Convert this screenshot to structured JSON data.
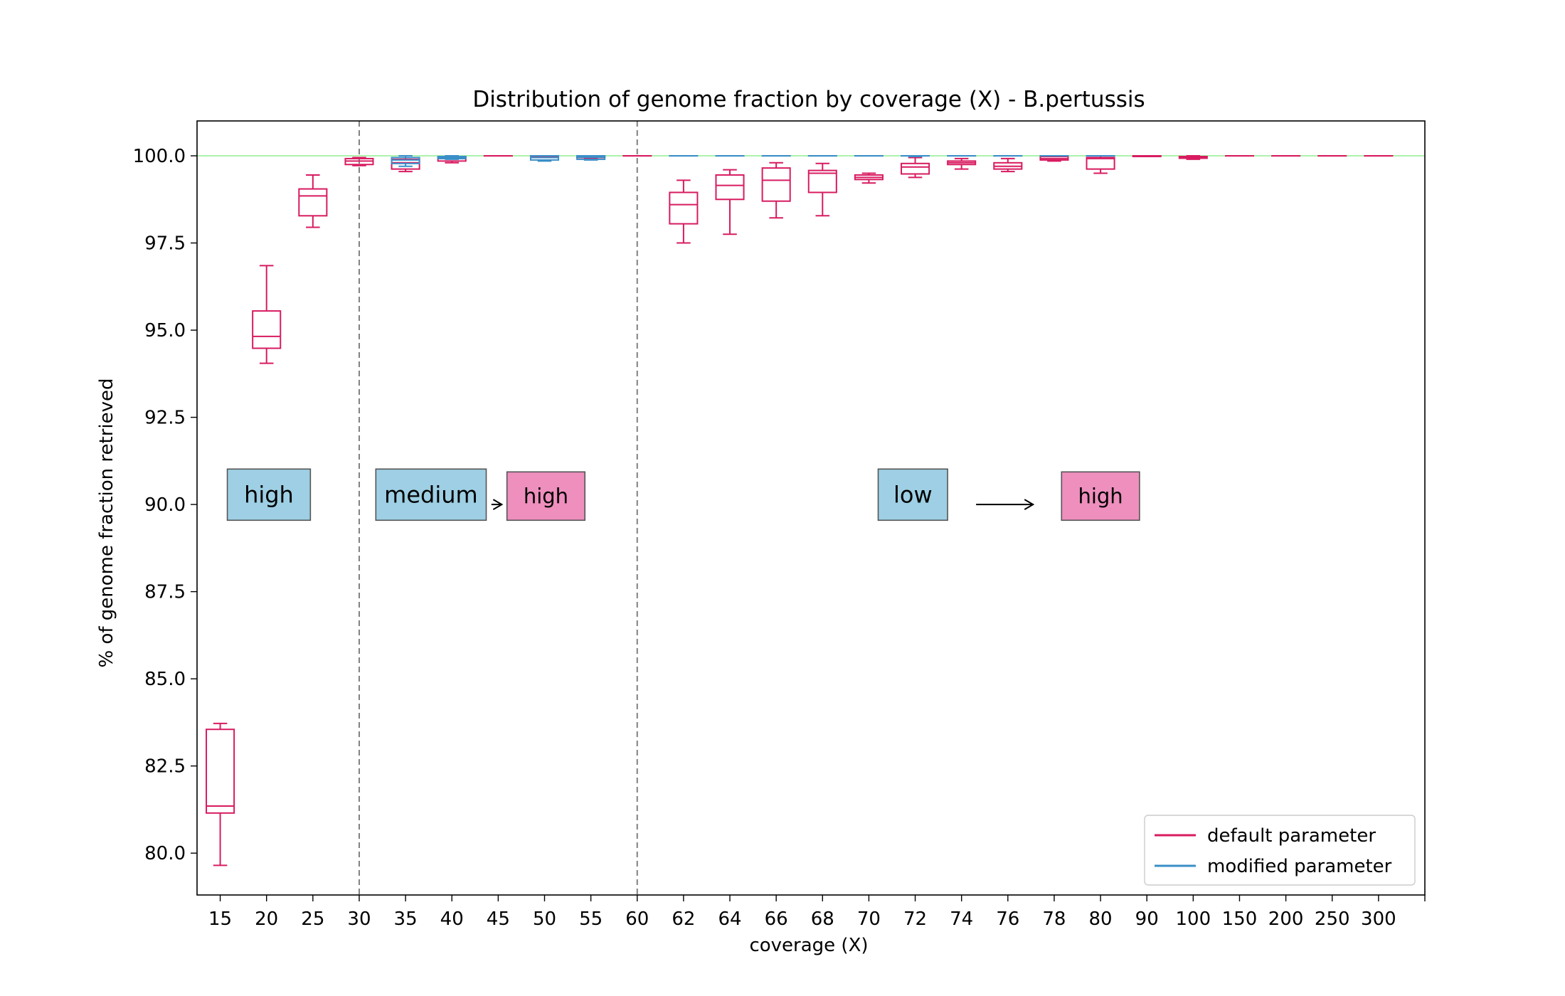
{
  "chart_data": {
    "type": "box",
    "title": "Distribution of genome fraction by coverage (X) - B.pertussis",
    "xlabel": "coverage (X)",
    "ylabel": "% of genome fraction retrieved",
    "ylim": [
      78.8,
      101.0
    ],
    "yticks": [
      "80.0",
      "82.5",
      "85.0",
      "87.5",
      "90.0",
      "92.5",
      "95.0",
      "97.5",
      "100.0"
    ],
    "categories": [
      "15",
      "20",
      "25",
      "30",
      "35",
      "40",
      "45",
      "50",
      "55",
      "60",
      "62",
      "64",
      "66",
      "68",
      "70",
      "72",
      "74",
      "76",
      "78",
      "80",
      "90",
      "100",
      "150",
      "200",
      "250",
      "300"
    ],
    "reference_line": 100.0,
    "reference_color": "#90ee90",
    "region_dividers_after": [
      "30",
      "60"
    ],
    "series": [
      {
        "name": "default parameter",
        "color": "#d81b60",
        "boxes": [
          {
            "cat": "15",
            "wl": 79.65,
            "q1": 81.15,
            "med": 81.35,
            "q3": 83.55,
            "wh": 83.72
          },
          {
            "cat": "20",
            "wl": 94.05,
            "q1": 94.48,
            "med": 94.82,
            "q3": 95.55,
            "wh": 96.85
          },
          {
            "cat": "25",
            "wl": 97.95,
            "q1": 98.28,
            "med": 98.85,
            "q3": 99.05,
            "wh": 99.45
          },
          {
            "cat": "30",
            "wl": 99.72,
            "q1": 99.75,
            "med": 99.85,
            "q3": 99.92,
            "wh": 99.95
          },
          {
            "cat": "35",
            "wl": 99.55,
            "q1": 99.62,
            "med": 99.8,
            "q3": 99.9,
            "wh": 99.95
          },
          {
            "cat": "40",
            "wl": 99.8,
            "q1": 99.85,
            "med": 99.92,
            "q3": 99.97,
            "wh": 100.0
          },
          {
            "cat": "45",
            "wl": 100.0,
            "q1": 100.0,
            "med": 100.0,
            "q3": 100.0,
            "wh": 100.0
          },
          {
            "cat": "50",
            "wl": 99.98,
            "q1": 99.98,
            "med": 100.0,
            "q3": 100.0,
            "wh": 100.0
          },
          {
            "cat": "55",
            "wl": 99.92,
            "q1": 99.95,
            "med": 99.98,
            "q3": 100.0,
            "wh": 100.0
          },
          {
            "cat": "60",
            "wl": 100.0,
            "q1": 100.0,
            "med": 100.0,
            "q3": 100.0,
            "wh": 100.0
          },
          {
            "cat": "62",
            "wl": 97.5,
            "q1": 98.05,
            "med": 98.6,
            "q3": 98.95,
            "wh": 99.3
          },
          {
            "cat": "64",
            "wl": 97.75,
            "q1": 98.75,
            "med": 99.15,
            "q3": 99.45,
            "wh": 99.6
          },
          {
            "cat": "66",
            "wl": 98.22,
            "q1": 98.7,
            "med": 99.3,
            "q3": 99.65,
            "wh": 99.8
          },
          {
            "cat": "68",
            "wl": 98.28,
            "q1": 98.95,
            "med": 99.5,
            "q3": 99.58,
            "wh": 99.78
          },
          {
            "cat": "70",
            "wl": 99.22,
            "q1": 99.32,
            "med": 99.38,
            "q3": 99.45,
            "wh": 99.5
          },
          {
            "cat": "72",
            "wl": 99.38,
            "q1": 99.48,
            "med": 99.68,
            "q3": 99.78,
            "wh": 99.95
          },
          {
            "cat": "74",
            "wl": 99.62,
            "q1": 99.75,
            "med": 99.8,
            "q3": 99.85,
            "wh": 99.92
          },
          {
            "cat": "76",
            "wl": 99.55,
            "q1": 99.62,
            "med": 99.7,
            "q3": 99.8,
            "wh": 99.92
          },
          {
            "cat": "78",
            "wl": 99.85,
            "q1": 99.88,
            "med": 99.92,
            "q3": 99.98,
            "wh": 100.0
          },
          {
            "cat": "80",
            "wl": 99.5,
            "q1": 99.62,
            "med": 99.92,
            "q3": 99.95,
            "wh": 100.0
          },
          {
            "cat": "90",
            "wl": 99.98,
            "q1": 99.98,
            "med": 100.0,
            "q3": 100.0,
            "wh": 100.0
          },
          {
            "cat": "100",
            "wl": 99.9,
            "q1": 99.93,
            "med": 99.95,
            "q3": 99.98,
            "wh": 100.0
          },
          {
            "cat": "150",
            "wl": 100.0,
            "q1": 100.0,
            "med": 100.0,
            "q3": 100.0,
            "wh": 100.0
          },
          {
            "cat": "200",
            "wl": 100.0,
            "q1": 100.0,
            "med": 100.0,
            "q3": 100.0,
            "wh": 100.0
          },
          {
            "cat": "250",
            "wl": 100.0,
            "q1": 100.0,
            "med": 100.0,
            "q3": 100.0,
            "wh": 100.0
          },
          {
            "cat": "300",
            "wl": 100.0,
            "q1": 100.0,
            "med": 100.0,
            "q3": 100.0,
            "wh": 100.0
          }
        ]
      },
      {
        "name": "modified parameter",
        "color": "#3a8fc8",
        "boxes": [
          {
            "cat": "35",
            "wl": 99.7,
            "q1": 99.78,
            "med": 99.88,
            "q3": 99.95,
            "wh": 100.0
          },
          {
            "cat": "40",
            "wl": 99.9,
            "q1": 99.92,
            "med": 99.96,
            "q3": 99.98,
            "wh": 100.0
          },
          {
            "cat": "50",
            "wl": 99.85,
            "q1": 99.88,
            "med": 99.95,
            "q3": 100.0,
            "wh": 100.0
          },
          {
            "cat": "55",
            "wl": 99.88,
            "q1": 99.9,
            "med": 99.96,
            "q3": 100.0,
            "wh": 100.0
          },
          {
            "cat": "62",
            "wl": 100.0,
            "q1": 100.0,
            "med": 100.0,
            "q3": 100.0,
            "wh": 100.0
          },
          {
            "cat": "64",
            "wl": 100.0,
            "q1": 100.0,
            "med": 100.0,
            "q3": 100.0,
            "wh": 100.0
          },
          {
            "cat": "66",
            "wl": 100.0,
            "q1": 100.0,
            "med": 100.0,
            "q3": 100.0,
            "wh": 100.0
          },
          {
            "cat": "68",
            "wl": 100.0,
            "q1": 100.0,
            "med": 100.0,
            "q3": 100.0,
            "wh": 100.0
          },
          {
            "cat": "70",
            "wl": 100.0,
            "q1": 100.0,
            "med": 100.0,
            "q3": 100.0,
            "wh": 100.0
          },
          {
            "cat": "72",
            "wl": 99.98,
            "q1": 100.0,
            "med": 100.0,
            "q3": 100.0,
            "wh": 100.0
          },
          {
            "cat": "74",
            "wl": 100.0,
            "q1": 100.0,
            "med": 100.0,
            "q3": 100.0,
            "wh": 100.0
          },
          {
            "cat": "76",
            "wl": 100.0,
            "q1": 100.0,
            "med": 100.0,
            "q3": 100.0,
            "wh": 100.0
          },
          {
            "cat": "78",
            "wl": 100.0,
            "q1": 100.0,
            "med": 100.0,
            "q3": 100.0,
            "wh": 100.0
          },
          {
            "cat": "80",
            "wl": 100.0,
            "q1": 100.0,
            "med": 100.0,
            "q3": 100.0,
            "wh": 100.0
          }
        ]
      }
    ],
    "annotations": [
      {
        "text": "high",
        "kind": "box",
        "color": "#9ecfe4",
        "x_cat": "20",
        "x_offset": 0.05,
        "y": 90.2
      },
      {
        "text": "medium",
        "kind": "box",
        "color": "#9ecfe4",
        "x_cat": "40",
        "x_offset": -0.45,
        "y": 90.2
      },
      {
        "text": "high",
        "kind": "box",
        "color": "#ee8fbd",
        "x_cat": "50",
        "x_offset": 0.03,
        "y": 90.2
      },
      {
        "text": "low",
        "kind": "box",
        "color": "#9ecfe4",
        "x_cat": "72",
        "x_offset": -0.05,
        "y": 90.2
      },
      {
        "text": "high",
        "kind": "box",
        "color": "#ee8fbd",
        "x_cat": "80",
        "x_offset": 0.0,
        "y": 90.2
      }
    ],
    "legend": {
      "placement": "lower-right",
      "entries": [
        "default parameter",
        "modified parameter"
      ]
    }
  }
}
